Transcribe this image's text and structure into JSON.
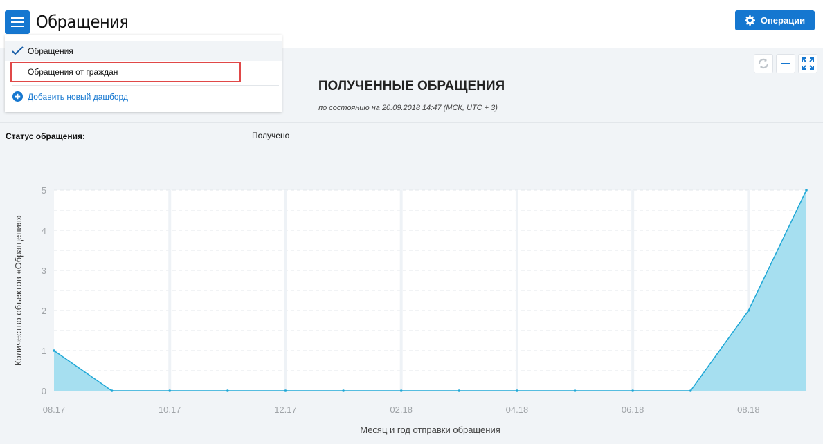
{
  "header": {
    "title": "Обращения",
    "operations_label": "Операции",
    "menu_icon": "hamburger-icon",
    "operations_icon": "gear-icon"
  },
  "dropdown": {
    "items": [
      {
        "label": "Обращения",
        "selected": true
      },
      {
        "label": "Обращения от граждан",
        "highlighted": true
      }
    ],
    "add_label": "Добавить новый дашборд"
  },
  "dashboard": {
    "title": "ПОЛУЧЕННЫЕ ОБРАЩЕНИЯ",
    "subtitle": "по состоянию на 20.09.2018 14:47 (МСК, UTC + 3)",
    "filter_label": "Статус обращения:",
    "filter_value": "Получено",
    "tools": [
      "refresh-icon",
      "minimize-icon",
      "fullscreen-icon"
    ]
  },
  "colors": {
    "accent": "#1577d0",
    "line": "#1ea7d6",
    "fill": "#a6dff0",
    "highlight_border": "#e04848"
  },
  "chart_data": {
    "type": "area",
    "x": [
      "08.17",
      "09.17",
      "10.17",
      "11.17",
      "12.17",
      "01.18",
      "02.18",
      "03.18",
      "04.18",
      "05.18",
      "06.18",
      "07.18",
      "08.18",
      "09.18"
    ],
    "values": [
      1,
      0,
      0,
      0,
      0,
      0,
      0,
      0,
      0,
      0,
      0,
      0,
      2,
      5
    ],
    "tick_labels": [
      "08.17",
      "10.17",
      "12.17",
      "02.18",
      "04.18",
      "06.18",
      "08.18"
    ],
    "yticks": [
      0,
      1,
      2,
      3,
      4,
      5
    ],
    "ylim": [
      0,
      5
    ],
    "xlabel": "Месяц и год отправки обращения",
    "ylabel": "Количество объектов «Обращения»",
    "grid": true
  }
}
